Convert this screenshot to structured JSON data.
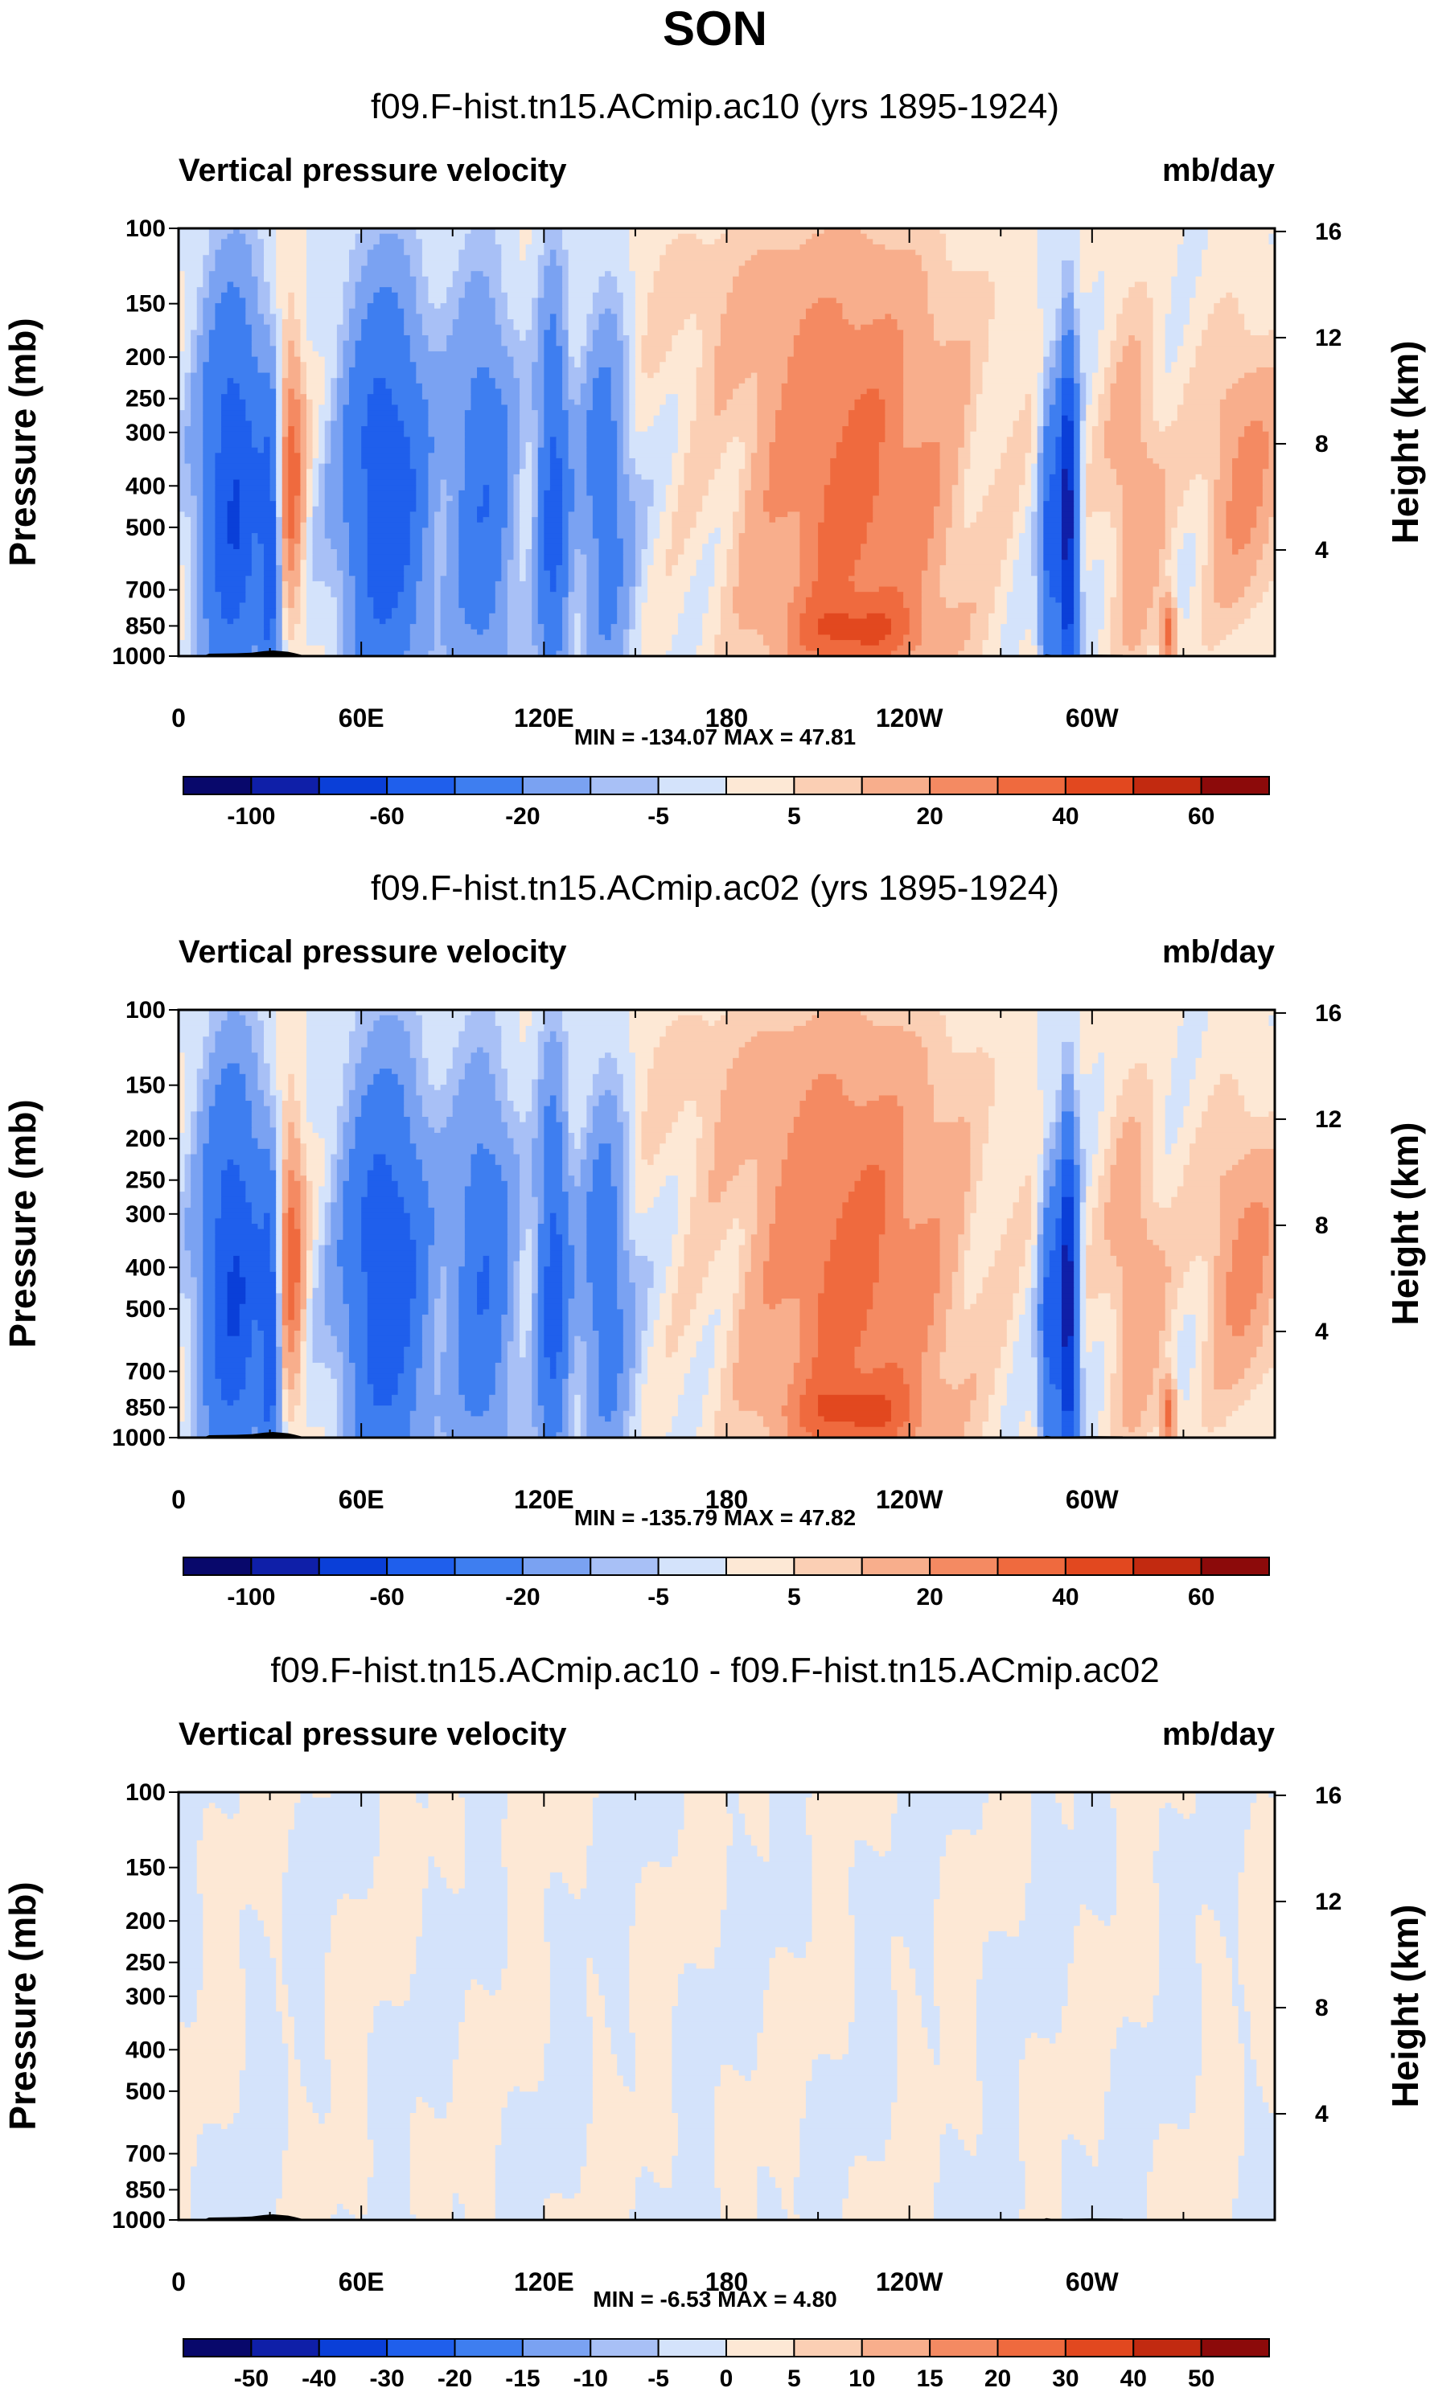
{
  "figure_title": "SON",
  "palettes": {
    "main": [
      "#08086b",
      "#0f1fa8",
      "#0a3fd8",
      "#1f5fec",
      "#3e7ef0",
      "#7aa2f2",
      "#a8c0f6",
      "#d4e3fb",
      "#fde8d5",
      "#fbcfb4",
      "#f8ae8c",
      "#f48a62",
      "#ef6a3e",
      "#e2481f",
      "#c22a10",
      "#8c0a0a"
    ],
    "diff": [
      "#08086b",
      "#0f1fa8",
      "#0a3fd8",
      "#1f5fec",
      "#3e7ef0",
      "#7aa2f2",
      "#a8c0f6",
      "#d4e3fb",
      "#fde8d5",
      "#fbcfb4",
      "#f8ae8c",
      "#f48a62",
      "#ef6a3e",
      "#e2481f",
      "#c22a10",
      "#8c0a0a"
    ],
    "terrain": "#000000"
  },
  "chart_data": [
    {
      "type": "contour",
      "title": "f09.F-hist.tn15.ACmip.ac10 (yrs 1895-1924)",
      "left_label": "Vertical pressure velocity",
      "right_label": "mb/day",
      "ylabel": "Pressure (mb)",
      "y2label": "Height (km)",
      "pressure_ticks": [
        100,
        150,
        200,
        250,
        300,
        400,
        500,
        700,
        850,
        1000
      ],
      "height_ticks": [
        16,
        12,
        8,
        4
      ],
      "x_tick_labels": [
        "0",
        "60E",
        "120E",
        "180",
        "120W",
        "60W"
      ],
      "x_tick_lon": [
        0,
        60,
        120,
        180,
        240,
        300
      ],
      "xlim": [
        0,
        360
      ],
      "ylim": [
        1000,
        100
      ],
      "stats": "MIN = -134.07  MAX =  47.81",
      "min": -134.07,
      "max": 47.81,
      "levels_labels": [
        "-100",
        "-60",
        "-20",
        "-5",
        "5",
        "20",
        "40",
        "60"
      ],
      "n_colors": 16,
      "palette": "main",
      "scale": 1.0
    },
    {
      "type": "contour",
      "title": "f09.F-hist.tn15.ACmip.ac02 (yrs 1895-1924)",
      "left_label": "Vertical pressure velocity",
      "right_label": "mb/day",
      "ylabel": "Pressure (mb)",
      "y2label": "Height (km)",
      "pressure_ticks": [
        100,
        150,
        200,
        250,
        300,
        400,
        500,
        700,
        850,
        1000
      ],
      "height_ticks": [
        16,
        12,
        8,
        4
      ],
      "x_tick_labels": [
        "0",
        "60E",
        "120E",
        "180",
        "120W",
        "60W"
      ],
      "x_tick_lon": [
        0,
        60,
        120,
        180,
        240,
        300
      ],
      "xlim": [
        0,
        360
      ],
      "ylim": [
        1000,
        100
      ],
      "stats": "MIN = -135.79  MAX =  47.82",
      "min": -135.79,
      "max": 47.82,
      "levels_labels": [
        "-100",
        "-60",
        "-20",
        "-5",
        "5",
        "20",
        "40",
        "60"
      ],
      "n_colors": 16,
      "palette": "main",
      "scale": 1.02
    },
    {
      "type": "contour",
      "title": "f09.F-hist.tn15.ACmip.ac10 - f09.F-hist.tn15.ACmip.ac02",
      "left_label": "Vertical pressure velocity",
      "right_label": "mb/day",
      "ylabel": "Pressure (mb)",
      "y2label": "Height (km)",
      "pressure_ticks": [
        100,
        150,
        200,
        250,
        300,
        400,
        500,
        700,
        850,
        1000
      ],
      "height_ticks": [
        16,
        12,
        8,
        4
      ],
      "x_tick_labels": [
        "0",
        "60E",
        "120E",
        "180",
        "120W",
        "60W"
      ],
      "x_tick_lon": [
        0,
        60,
        120,
        180,
        240,
        300
      ],
      "xlim": [
        0,
        360
      ],
      "ylim": [
        1000,
        100
      ],
      "stats": "MIN = -6.53  MAX =  4.80",
      "min": -6.53,
      "max": 4.8,
      "levels_labels": [
        "-50",
        "-40",
        "-30",
        "-20",
        "-15",
        "-10",
        "-5",
        "0",
        "5",
        "10",
        "15",
        "20",
        "30",
        "40",
        "50"
      ],
      "n_colors": 16,
      "palette": "diff",
      "scale": 0
    }
  ]
}
